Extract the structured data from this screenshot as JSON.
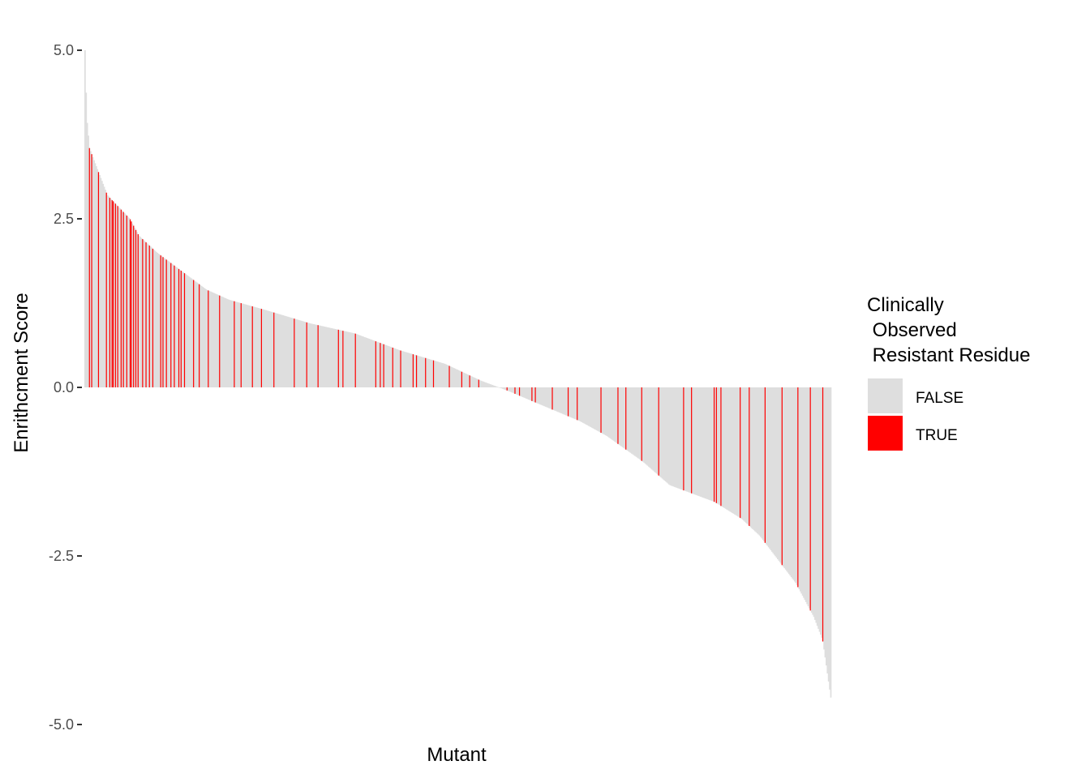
{
  "chart_data": {
    "type": "bar",
    "title": "",
    "xlabel": "Mutant",
    "ylabel": "Enrithcment Score",
    "ylim": [
      -5.1,
      5.0
    ],
    "y_ticks": [
      "5.0",
      "2.5",
      "0.0",
      "-2.5",
      "-5.0"
    ],
    "y_tick_values": [
      5.0,
      2.5,
      0.0,
      -2.5,
      -5.0
    ],
    "x_ticks": [],
    "grid": false,
    "n_bars": 660,
    "sorted": "descending",
    "value_profile": [
      {
        "rank": 0,
        "value": 5.0
      },
      {
        "rank": 2,
        "value": 4.0
      },
      {
        "rank": 5,
        "value": 3.55
      },
      {
        "rank": 12,
        "value": 3.3
      },
      {
        "rank": 25,
        "value": 2.85
      },
      {
        "rank": 50,
        "value": 2.5
      },
      {
        "rank": 60,
        "value": 2.25
      },
      {
        "rank": 80,
        "value": 2.0
      },
      {
        "rank": 95,
        "value": 1.85
      },
      {
        "rank": 110,
        "value": 1.7
      },
      {
        "rank": 125,
        "value": 1.55
      },
      {
        "rank": 135,
        "value": 1.45
      },
      {
        "rank": 160,
        "value": 1.3
      },
      {
        "rank": 200,
        "value": 1.15
      },
      {
        "rank": 250,
        "value": 0.95
      },
      {
        "rank": 300,
        "value": 0.8
      },
      {
        "rank": 350,
        "value": 0.55
      },
      {
        "rank": 400,
        "value": 0.35
      },
      {
        "rank": 440,
        "value": 0.1
      },
      {
        "rank": 470,
        "value": -0.05
      },
      {
        "rank": 500,
        "value": -0.22
      },
      {
        "rank": 550,
        "value": -0.5
      },
      {
        "rank": 580,
        "value": -0.72
      },
      {
        "rank": 620,
        "value": -1.1
      },
      {
        "rank": 650,
        "value": -1.45
      },
      {
        "rank": 700,
        "value": -1.7
      },
      {
        "rank": 730,
        "value": -1.95
      },
      {
        "rank": 750,
        "value": -2.2
      },
      {
        "rank": 770,
        "value": -2.55
      },
      {
        "rank": 790,
        "value": -2.9
      },
      {
        "rank": 810,
        "value": -3.4
      },
      {
        "rank": 820,
        "value": -3.75
      },
      {
        "rank": 829,
        "value": -4.6
      }
    ],
    "total_ranks": 829,
    "highlighted_ranks": [
      6,
      8,
      17,
      26,
      30,
      33,
      35,
      37,
      40,
      44,
      47,
      51,
      55,
      57,
      59,
      62,
      65,
      70,
      74,
      79,
      83,
      92,
      95,
      99,
      105,
      109,
      115,
      117,
      122,
      132,
      139,
      150,
      165,
      182,
      191,
      205,
      215,
      230,
      255,
      270,
      285,
      310,
      315,
      330,
      355,
      360,
      365,
      375,
      385,
      400,
      405,
      415,
      425,
      445,
      460,
      470,
      480,
      515,
      525,
      530,
      545,
      550,
      570,
      590,
      600,
      630,
      650,
      660,
      680,
      700,
      730,
      740,
      768,
      771,
      776,
      800,
      810,
      830,
      850,
      870,
      885,
      900
    ],
    "highlight_rank_scale": 910,
    "series": [
      {
        "name": "FALSE",
        "color": "#dedede"
      },
      {
        "name": "TRUE",
        "color": "#ff0000"
      }
    ]
  },
  "legend": {
    "title_lines": [
      "Clinically",
      " Observed",
      " Resistant Residue"
    ],
    "items": [
      {
        "label": "FALSE",
        "color": "#dedede"
      },
      {
        "label": "TRUE",
        "color": "#ff0000"
      }
    ],
    "placement": "right"
  }
}
